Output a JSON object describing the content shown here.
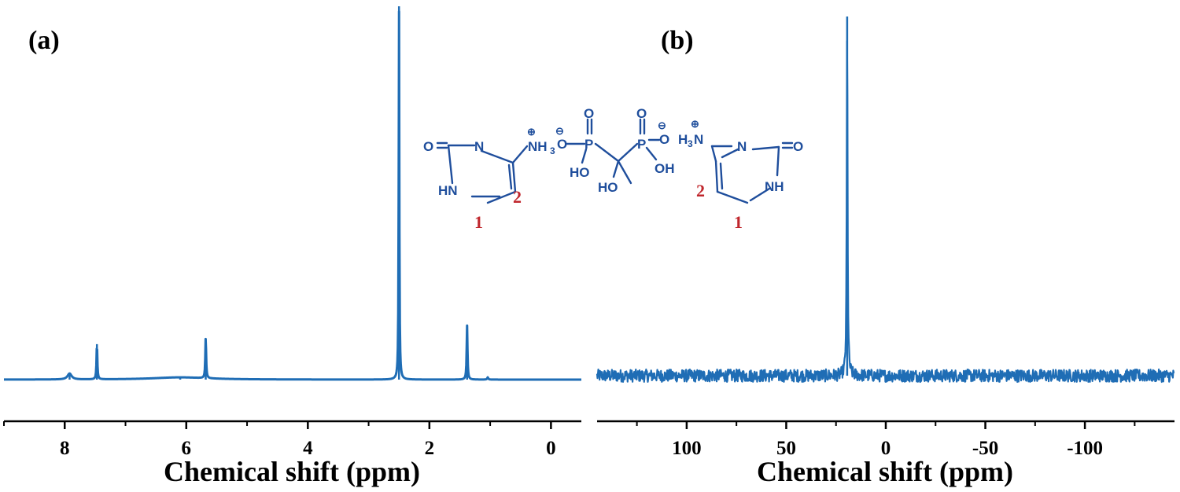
{
  "chart_data": [
    {
      "type": "line",
      "panel_label": "(a)",
      "title": "",
      "xlabel": "Chemical shift (ppm)",
      "ylabel": "",
      "x_reversed": true,
      "xlim": [
        9.0,
        -0.5
      ],
      "ylim": [
        0,
        1
      ],
      "xticks": [
        8,
        6,
        4,
        2,
        0
      ],
      "xtick_labels": [
        "8",
        "6",
        "4",
        "2",
        "0"
      ],
      "minor_xticks": [
        9,
        7,
        5,
        3,
        1
      ],
      "line_color": "#1f6db5",
      "grid": false,
      "baseline": 0.0,
      "peaks": [
        {
          "x": 7.92,
          "height": 0.016,
          "width": 0.04
        },
        {
          "x": 7.47,
          "height": 0.095,
          "width": 0.008
        },
        {
          "x": 6.1,
          "height": 0.006,
          "width": 0.55
        },
        {
          "x": 5.68,
          "height": 0.11,
          "width": 0.008
        },
        {
          "x": 2.5,
          "height": 1.0,
          "width": 0.006
        },
        {
          "x": 1.38,
          "height": 0.145,
          "width": 0.008
        },
        {
          "x": 1.04,
          "height": 0.006,
          "width": 0.01
        }
      ]
    },
    {
      "type": "line",
      "panel_label": "(b)",
      "title": "",
      "xlabel": "Chemical shift (ppm)",
      "ylabel": "",
      "x_reversed": true,
      "xlim": [
        145,
        -145
      ],
      "ylim": [
        0,
        1
      ],
      "xticks": [
        100,
        50,
        0,
        -50,
        -100
      ],
      "xtick_labels": [
        "100",
        "50",
        "0",
        "-50",
        "-100"
      ],
      "minor_xticks": [
        125,
        75,
        25,
        -25,
        -75,
        -125
      ],
      "line_color": "#1f6db5",
      "grid": false,
      "baseline": 0.0,
      "noise_amplitude": 0.035,
      "peaks": [
        {
          "x": 19.4,
          "height": 1.0,
          "width": 0.25
        }
      ]
    }
  ],
  "molecule": {
    "left_ring": {
      "O": "O",
      "N": "N",
      "NH": "HN",
      "NH3": "NH",
      "NH3_sub": "3",
      "plus": "⊕",
      "pos1": "1",
      "pos2": "2"
    },
    "center": {
      "O_top_left": "O",
      "O_top_right": "O",
      "P_left": "P",
      "P_right": "P",
      "O_minus_left": "O",
      "O_minus_right": "O",
      "minus": "⊖",
      "OH_left": "HO",
      "OH_right": "OH",
      "OH_center": "HO"
    },
    "right_ring": {
      "O": "O",
      "N": "N",
      "NH": "NH",
      "H3N": "H",
      "H3N_sub": "3",
      "H3N_N": "N",
      "plus": "⊕",
      "pos1": "1",
      "pos2": "2"
    }
  }
}
